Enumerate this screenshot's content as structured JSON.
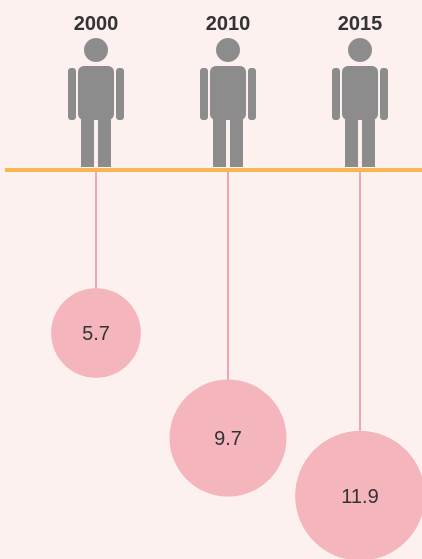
{
  "chart_data": {
    "type": "bubble",
    "categories": [
      "2000",
      "2010",
      "2015"
    ],
    "values": [
      5.7,
      9.7,
      11.9
    ],
    "color": "#f5b5bd"
  }
}
